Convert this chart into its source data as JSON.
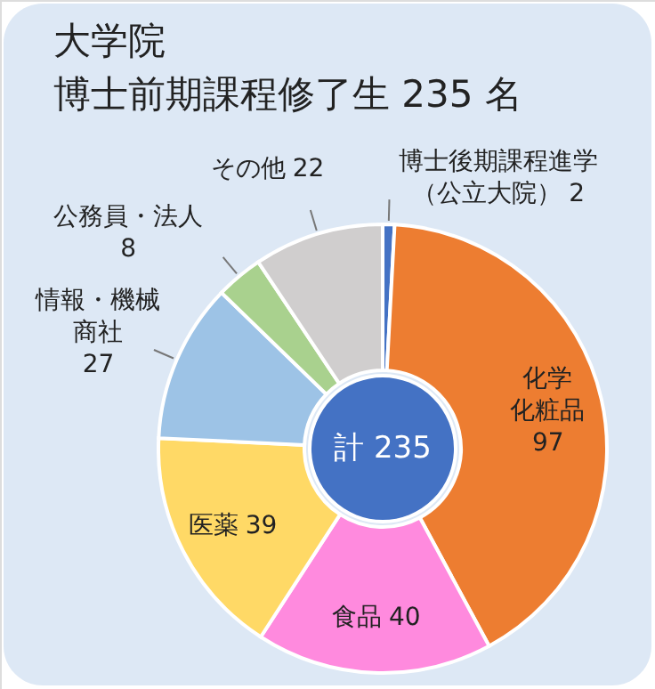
{
  "chart_data": {
    "type": "donut",
    "title": [
      "大学院",
      "博士前期課程修了生 235 名"
    ],
    "categories": [
      "博士後期課程進学（公立大院）",
      "化学化粧品",
      "食品",
      "医薬",
      "情報・機械商社",
      "公務員・法人",
      "その他"
    ],
    "values": [
      2,
      97,
      40,
      39,
      27,
      8,
      22
    ],
    "colors": [
      "#4472c4",
      "#ed7d31",
      "#ff8ade",
      "#ffd966",
      "#9dc3e6",
      "#a9d18e",
      "#d0cece"
    ],
    "data_labels": true,
    "annotations": [
      "計 235"
    ]
  }
}
